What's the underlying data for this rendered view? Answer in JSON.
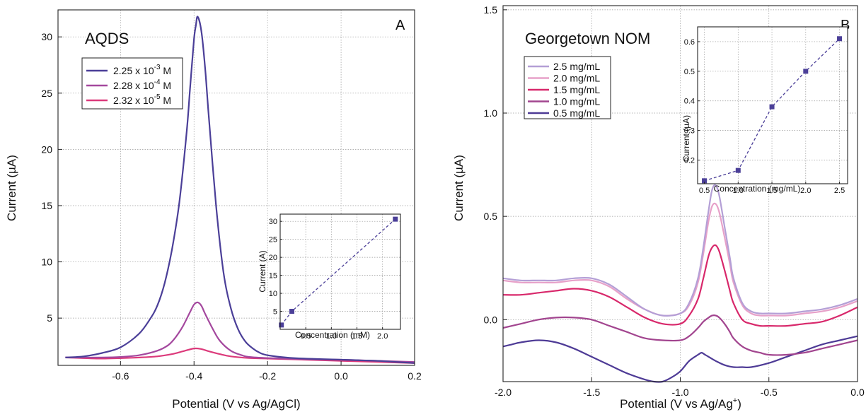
{
  "chart_data": [
    {
      "panel_label": "A",
      "type": "line",
      "title": "AQDS",
      "xlabel": "Potential (V vs Ag/AgCl)",
      "ylabel": "Current (µA)",
      "xlim": [
        -0.77,
        0.2
      ],
      "ylim": [
        0.8,
        32.4
      ],
      "xticks": [
        -0.6,
        -0.4,
        -0.2,
        0.0,
        0.2
      ],
      "xtick_labels": [
        "-0.6",
        "-0.4",
        "-0.2",
        "0.0",
        "0.2"
      ],
      "yticks": [
        5,
        10,
        15,
        20,
        25,
        30
      ],
      "ytick_labels": [
        "5",
        "10",
        "15",
        "20",
        "25",
        "30"
      ],
      "grid": true,
      "legend_position": "top-left",
      "series": [
        {
          "name": "2.25 x 10-3 M",
          "legend": {
            "base": "2.25 x 10",
            "exp": "-3",
            "unit": " M"
          },
          "color": "#4b3f98",
          "x": [
            -0.75,
            -0.7,
            -0.65,
            -0.6,
            -0.55,
            -0.52,
            -0.5,
            -0.48,
            -0.46,
            -0.44,
            -0.42,
            -0.41,
            -0.4,
            -0.395,
            -0.39,
            -0.38,
            -0.37,
            -0.36,
            -0.34,
            -0.32,
            -0.3,
            -0.28,
            -0.26,
            -0.24,
            -0.22,
            -0.2,
            -0.15,
            -0.1,
            -0.05,
            0.0,
            0.05,
            0.1,
            0.15,
            0.2
          ],
          "y": [
            1.5,
            1.6,
            1.9,
            2.4,
            3.6,
            4.9,
            6.1,
            8.1,
            11.1,
            15.3,
            21.6,
            25.8,
            29.8,
            31.0,
            31.8,
            30.5,
            27.3,
            23.0,
            15.0,
            9.1,
            5.9,
            4.0,
            2.9,
            2.3,
            1.9,
            1.7,
            1.5,
            1.4,
            1.35,
            1.3,
            1.25,
            1.2,
            1.1,
            1.0
          ]
        },
        {
          "name": "2.28 x 10-4 M",
          "legend": {
            "base": "2.28 x 10",
            "exp": "-4",
            "unit": " M"
          },
          "color": "#a4489e",
          "x": [
            -0.75,
            -0.65,
            -0.6,
            -0.55,
            -0.5,
            -0.47,
            -0.45,
            -0.43,
            -0.41,
            -0.4,
            -0.39,
            -0.38,
            -0.37,
            -0.35,
            -0.33,
            -0.3,
            -0.27,
            -0.25,
            -0.2,
            -0.1,
            0.0,
            0.1,
            0.2
          ],
          "y": [
            1.5,
            1.5,
            1.55,
            1.7,
            2.1,
            2.6,
            3.3,
            4.3,
            5.6,
            6.2,
            6.4,
            6.1,
            5.4,
            4.1,
            3.0,
            2.1,
            1.7,
            1.55,
            1.45,
            1.35,
            1.3,
            1.2,
            1.1
          ]
        },
        {
          "name": "2.32 x 10-5 M",
          "legend": {
            "base": "2.32 x 10",
            "exp": "-5",
            "unit": " M"
          },
          "color": "#dc3a7b",
          "x": [
            -0.75,
            -0.65,
            -0.55,
            -0.5,
            -0.46,
            -0.43,
            -0.4,
            -0.38,
            -0.36,
            -0.33,
            -0.3,
            -0.25,
            -0.2,
            -0.1,
            0.0,
            0.1,
            0.2
          ],
          "y": [
            1.5,
            1.4,
            1.5,
            1.6,
            1.8,
            2.05,
            2.3,
            2.25,
            2.05,
            1.8,
            1.6,
            1.45,
            1.4,
            1.3,
            1.2,
            1.1,
            1.0
          ]
        }
      ],
      "inset": {
        "type": "scatter",
        "xlabel": "Concentration (mM)",
        "ylabel": "Current (A)",
        "xlim": [
          0,
          2.35
        ],
        "ylim": [
          0,
          32
        ],
        "xticks": [
          0.5,
          1.0,
          1.5,
          2.0
        ],
        "xtick_labels": [
          "0.5",
          "1.0",
          "1.5",
          "2.0"
        ],
        "yticks": [
          5,
          10,
          15,
          20,
          25,
          30
        ],
        "ytick_labels": [
          "5",
          "10",
          "15",
          "20",
          "25",
          "30"
        ],
        "color": "#4b3f98",
        "x": [
          0.0232,
          0.228,
          2.25
        ],
        "y": [
          1.2,
          5.0,
          30.6
        ]
      }
    },
    {
      "panel_label": "B",
      "type": "line",
      "title": "Georgetown NOM",
      "xlabel": "Potential (V vs Ag/Ag+)",
      "xlabel_parts": {
        "base": "Potential (V vs Ag/Ag",
        "sup": "+",
        "end": ")"
      },
      "ylabel": "Current (µA)",
      "xlim": [
        -2.0,
        0.0
      ],
      "ylim": [
        -0.3,
        1.52
      ],
      "xticks": [
        -2.0,
        -1.5,
        -1.0,
        -0.5,
        0.0
      ],
      "xtick_labels": [
        "-2.0",
        "-1.5",
        "-1.0",
        "-0.5",
        "0.0"
      ],
      "yticks": [
        0.0,
        0.5,
        1.0,
        1.5
      ],
      "ytick_labels": [
        "0.0",
        "0.5",
        "1.0",
        "1.5"
      ],
      "grid": true,
      "legend_position": "top-left",
      "series": [
        {
          "name": "2.5 mg/mL",
          "color": "#b49fd6",
          "x": [
            -2.0,
            -1.9,
            -1.8,
            -1.7,
            -1.6,
            -1.5,
            -1.4,
            -1.3,
            -1.2,
            -1.1,
            -1.0,
            -0.95,
            -0.9,
            -0.87,
            -0.84,
            -0.82,
            -0.8,
            -0.78,
            -0.75,
            -0.72,
            -0.7,
            -0.65,
            -0.6,
            -0.55,
            -0.5,
            -0.4,
            -0.3,
            -0.2,
            -0.1,
            0.0
          ],
          "y": [
            0.2,
            0.19,
            0.19,
            0.19,
            0.2,
            0.2,
            0.17,
            0.11,
            0.05,
            0.02,
            0.03,
            0.08,
            0.2,
            0.35,
            0.53,
            0.63,
            0.65,
            0.6,
            0.45,
            0.3,
            0.2,
            0.08,
            0.04,
            0.03,
            0.03,
            0.03,
            0.04,
            0.05,
            0.07,
            0.1
          ]
        },
        {
          "name": "2.0 mg/mL",
          "color": "#e7a1c9",
          "x": [
            -2.0,
            -1.9,
            -1.8,
            -1.7,
            -1.6,
            -1.5,
            -1.4,
            -1.3,
            -1.2,
            -1.1,
            -1.0,
            -0.95,
            -0.9,
            -0.87,
            -0.84,
            -0.82,
            -0.8,
            -0.78,
            -0.75,
            -0.72,
            -0.7,
            -0.65,
            -0.6,
            -0.55,
            -0.5,
            -0.4,
            -0.3,
            -0.2,
            -0.1,
            0.0
          ],
          "y": [
            0.19,
            0.18,
            0.18,
            0.18,
            0.19,
            0.19,
            0.16,
            0.1,
            0.05,
            0.02,
            0.03,
            0.07,
            0.18,
            0.32,
            0.48,
            0.55,
            0.56,
            0.52,
            0.4,
            0.27,
            0.18,
            0.07,
            0.03,
            0.02,
            0.02,
            0.02,
            0.03,
            0.04,
            0.06,
            0.09
          ]
        },
        {
          "name": "1.5 mg/mL",
          "color": "#d8286b",
          "x": [
            -2.0,
            -1.9,
            -1.8,
            -1.7,
            -1.6,
            -1.5,
            -1.4,
            -1.3,
            -1.2,
            -1.1,
            -1.0,
            -0.95,
            -0.9,
            -0.87,
            -0.84,
            -0.82,
            -0.8,
            -0.78,
            -0.75,
            -0.72,
            -0.7,
            -0.65,
            -0.6,
            -0.55,
            -0.5,
            -0.4,
            -0.3,
            -0.2,
            -0.1,
            0.0
          ],
          "y": [
            0.12,
            0.12,
            0.13,
            0.14,
            0.15,
            0.14,
            0.11,
            0.06,
            0.01,
            -0.02,
            -0.02,
            0.02,
            0.1,
            0.2,
            0.31,
            0.35,
            0.36,
            0.33,
            0.24,
            0.14,
            0.08,
            0.0,
            -0.02,
            -0.03,
            -0.03,
            -0.03,
            -0.02,
            -0.01,
            0.02,
            0.06
          ]
        },
        {
          "name": "1.0 mg/mL",
          "color": "#a2458f",
          "x": [
            -2.0,
            -1.9,
            -1.8,
            -1.7,
            -1.6,
            -1.5,
            -1.4,
            -1.3,
            -1.2,
            -1.1,
            -1.0,
            -0.95,
            -0.9,
            -0.87,
            -0.84,
            -0.82,
            -0.8,
            -0.78,
            -0.75,
            -0.72,
            -0.7,
            -0.65,
            -0.6,
            -0.55,
            -0.5,
            -0.4,
            -0.3,
            -0.2,
            -0.1,
            0.0
          ],
          "y": [
            -0.04,
            -0.02,
            0.0,
            0.01,
            0.01,
            0.0,
            -0.03,
            -0.06,
            -0.09,
            -0.1,
            -0.1,
            -0.08,
            -0.04,
            -0.01,
            0.01,
            0.02,
            0.02,
            0.01,
            -0.02,
            -0.06,
            -0.09,
            -0.13,
            -0.15,
            -0.16,
            -0.17,
            -0.17,
            -0.16,
            -0.14,
            -0.12,
            -0.1
          ]
        },
        {
          "name": "0.5 mg/mL",
          "color": "#4e3b96",
          "x": [
            -2.0,
            -1.95,
            -1.9,
            -1.8,
            -1.7,
            -1.6,
            -1.5,
            -1.4,
            -1.3,
            -1.2,
            -1.15,
            -1.1,
            -1.05,
            -1.0,
            -0.95,
            -0.9,
            -0.88,
            -0.86,
            -0.84,
            -0.8,
            -0.75,
            -0.7,
            -0.65,
            -0.6,
            -0.5,
            -0.4,
            -0.3,
            -0.2,
            -0.1,
            0.0
          ],
          "y": [
            -0.13,
            -0.12,
            -0.11,
            -0.1,
            -0.11,
            -0.14,
            -0.18,
            -0.22,
            -0.26,
            -0.29,
            -0.3,
            -0.3,
            -0.28,
            -0.25,
            -0.2,
            -0.17,
            -0.16,
            -0.17,
            -0.18,
            -0.2,
            -0.22,
            -0.23,
            -0.23,
            -0.23,
            -0.21,
            -0.18,
            -0.15,
            -0.12,
            -0.1,
            -0.08
          ]
        }
      ],
      "inset": {
        "type": "scatter",
        "xlabel": "Concentration (mg/mL)",
        "ylabel": "Current (µA)",
        "xlim": [
          0.4,
          2.62
        ],
        "ylim": [
          0.12,
          0.65
        ],
        "xticks": [
          0.5,
          1.0,
          1.5,
          2.0,
          2.5
        ],
        "xtick_labels": [
          "0.5",
          "1.0",
          "1.5",
          "2.0",
          "2.5"
        ],
        "yticks": [
          0.2,
          0.3,
          0.4,
          0.5,
          0.6
        ],
        "ytick_labels": [
          "0.2",
          "0.3",
          "0.4",
          "0.5",
          "0.6"
        ],
        "color": "#4b3f98",
        "x": [
          0.5,
          1.0,
          1.5,
          2.0,
          2.5
        ],
        "y": [
          0.13,
          0.165,
          0.38,
          0.5,
          0.61
        ]
      }
    }
  ]
}
